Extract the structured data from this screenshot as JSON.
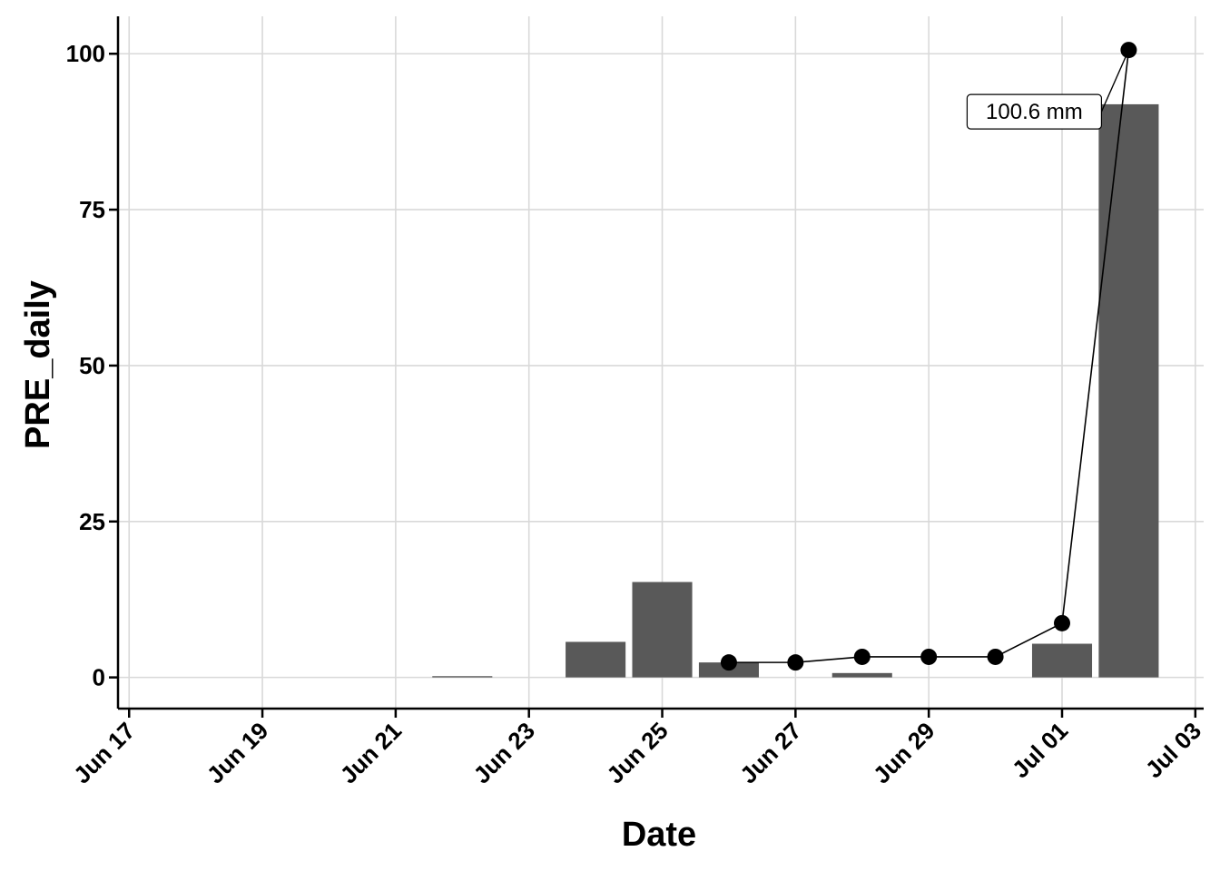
{
  "chart_data": {
    "type": "bar",
    "xlabel": "Date",
    "ylabel": "PRE_daily",
    "x_range": [
      "2024-06-16T20:00",
      "2024-07-03T03:00"
    ],
    "ylim": [
      -5,
      106
    ],
    "x_ticks": [
      {
        "date": "2024-06-17",
        "label": "Jun 17"
      },
      {
        "date": "2024-06-19",
        "label": "Jun 19"
      },
      {
        "date": "2024-06-21",
        "label": "Jun 21"
      },
      {
        "date": "2024-06-23",
        "label": "Jun 23"
      },
      {
        "date": "2024-06-25",
        "label": "Jun 25"
      },
      {
        "date": "2024-06-27",
        "label": "Jun 27"
      },
      {
        "date": "2024-06-29",
        "label": "Jun 29"
      },
      {
        "date": "2024-07-01",
        "label": "Jul 01"
      },
      {
        "date": "2024-07-03",
        "label": "Jul 03"
      }
    ],
    "y_ticks": [
      {
        "value": 0,
        "label": "0"
      },
      {
        "value": 25,
        "label": "25"
      },
      {
        "value": 50,
        "label": "50"
      },
      {
        "value": 75,
        "label": "75"
      },
      {
        "value": 100,
        "label": "100"
      }
    ],
    "bars": {
      "color": "#595959",
      "points": [
        {
          "date": "2024-06-22",
          "value": 0.2
        },
        {
          "date": "2024-06-24",
          "value": 5.7
        },
        {
          "date": "2024-06-25",
          "value": 15.3
        },
        {
          "date": "2024-06-26",
          "value": 2.4
        },
        {
          "date": "2024-06-28",
          "value": 0.7
        },
        {
          "date": "2024-07-01",
          "value": 5.4
        },
        {
          "date": "2024-07-02",
          "value": 91.9
        }
      ]
    },
    "line": {
      "color": "#000000",
      "points": [
        {
          "date": "2024-06-26",
          "value": 2.4
        },
        {
          "date": "2024-06-27",
          "value": 2.4
        },
        {
          "date": "2024-06-28",
          "value": 3.3
        },
        {
          "date": "2024-06-29",
          "value": 3.3
        },
        {
          "date": "2024-06-30",
          "value": 3.3
        },
        {
          "date": "2024-07-01",
          "value": 8.7
        },
        {
          "date": "2024-07-02",
          "value": 100.6
        }
      ]
    },
    "annotation": {
      "text": "100.6 mm",
      "date": "2024-07-02",
      "value": 100.6
    },
    "grid": true,
    "grid_color": "#d9d9d9"
  }
}
